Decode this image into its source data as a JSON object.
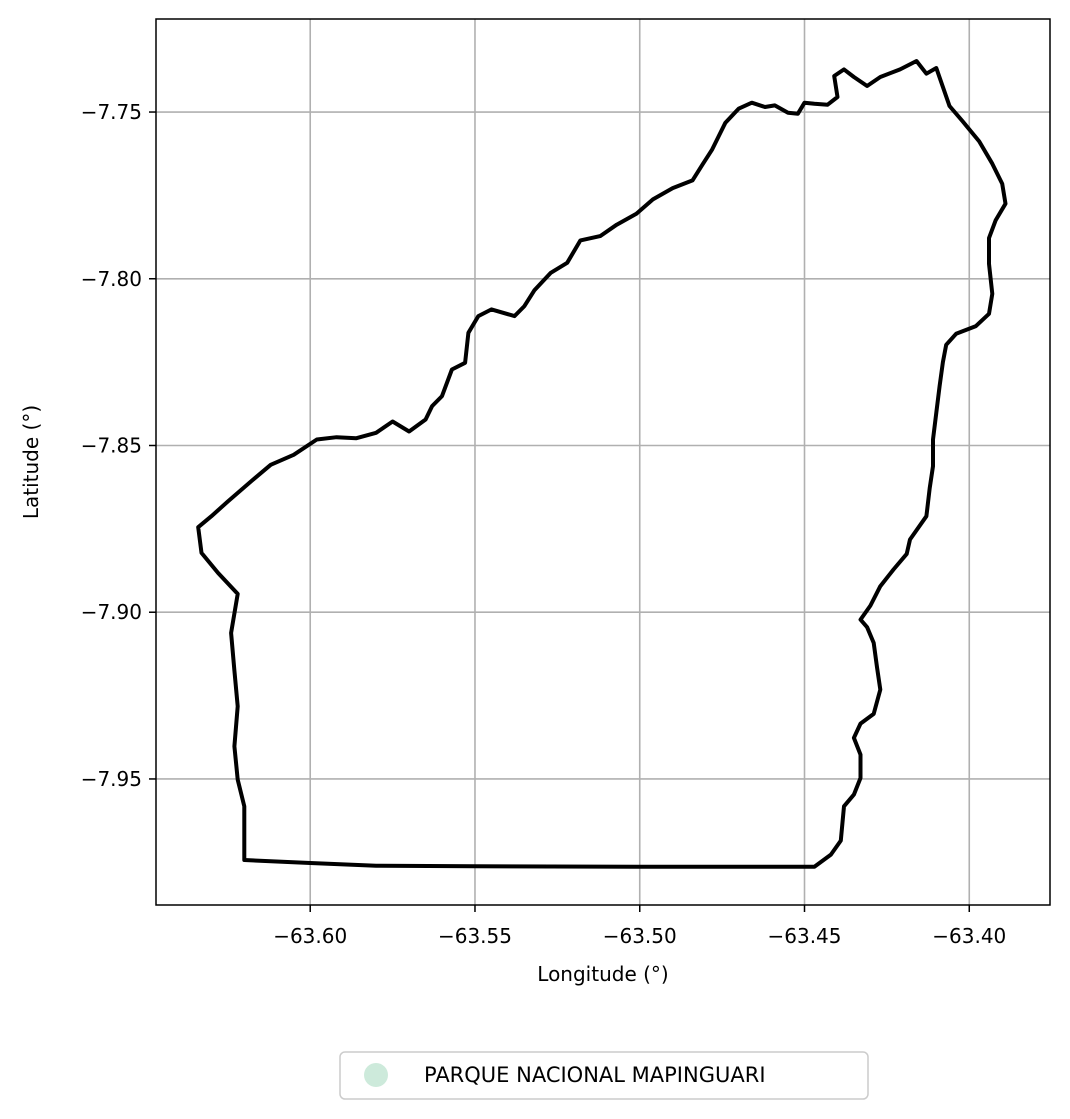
{
  "chart_data": {
    "type": "map",
    "title": "",
    "xlabel": "Longitude (°)",
    "ylabel": "Latitude (°)",
    "xlim": [
      -63.6468,
      -63.3755
    ],
    "ylim": [
      -7.9878,
      -7.7221
    ],
    "x_ticks": [
      -63.6,
      -63.55,
      -63.5,
      -63.45,
      -63.4
    ],
    "x_tick_labels": [
      "−63.60",
      "−63.55",
      "−63.50",
      "−63.45",
      "−63.40"
    ],
    "y_ticks": [
      -7.75,
      -7.8,
      -7.85,
      -7.9,
      -7.95
    ],
    "y_tick_labels": [
      "−7.75",
      "−7.80",
      "−7.85",
      "−7.90",
      "−7.95"
    ],
    "grid": true,
    "legend_position": "bottom-center",
    "legend": [
      {
        "label": "PARQUE NACIONAL MAPINGUARI",
        "color": "#cdeadb"
      }
    ],
    "outline_color": "#000000",
    "boundary": [
      [
        -63.62,
        -7.9743
      ],
      [
        -63.6,
        -7.9752
      ],
      [
        -63.58,
        -7.976
      ],
      [
        -63.55,
        -7.9762
      ],
      [
        -63.5,
        -7.9763
      ],
      [
        -63.447,
        -7.9763
      ],
      [
        -63.442,
        -7.9727
      ],
      [
        -63.439,
        -7.9685
      ],
      [
        -63.438,
        -7.9582
      ],
      [
        -63.435,
        -7.9547
      ],
      [
        -63.433,
        -7.9497
      ],
      [
        -63.433,
        -7.9427
      ],
      [
        -63.435,
        -7.9377
      ],
      [
        -63.433,
        -7.9334
      ],
      [
        -63.429,
        -7.9305
      ],
      [
        -63.427,
        -7.9232
      ],
      [
        -63.428,
        -7.9165
      ],
      [
        -63.429,
        -7.9092
      ],
      [
        -63.431,
        -7.9045
      ],
      [
        -63.433,
        -7.9022
      ],
      [
        -63.43,
        -7.898
      ],
      [
        -63.427,
        -7.8922
      ],
      [
        -63.423,
        -7.8872
      ],
      [
        -63.419,
        -7.8825
      ],
      [
        -63.418,
        -7.8782
      ],
      [
        -63.413,
        -7.8712
      ],
      [
        -63.412,
        -7.8628
      ],
      [
        -63.411,
        -7.8562
      ],
      [
        -63.411,
        -7.8482
      ],
      [
        -63.41,
        -7.8402
      ],
      [
        -63.409,
        -7.8322
      ],
      [
        -63.408,
        -7.825
      ],
      [
        -63.407,
        -7.8198
      ],
      [
        -63.404,
        -7.8165
      ],
      [
        -63.398,
        -7.8142
      ],
      [
        -63.394,
        -7.8105
      ],
      [
        -63.393,
        -7.8045
      ],
      [
        -63.394,
        -7.7955
      ],
      [
        -63.394,
        -7.7878
      ],
      [
        -63.392,
        -7.7825
      ],
      [
        -63.389,
        -7.7775
      ],
      [
        -63.39,
        -7.7715
      ],
      [
        -63.393,
        -7.7655
      ],
      [
        -63.397,
        -7.7588
      ],
      [
        -63.402,
        -7.7528
      ],
      [
        -63.406,
        -7.7482
      ],
      [
        -63.408,
        -7.7425
      ],
      [
        -63.41,
        -7.7368
      ],
      [
        -63.413,
        -7.7385
      ],
      [
        -63.416,
        -7.7347
      ],
      [
        -63.421,
        -7.7372
      ],
      [
        -63.427,
        -7.7395
      ],
      [
        -63.431,
        -7.7422
      ],
      [
        -63.435,
        -7.7395
      ],
      [
        -63.438,
        -7.7372
      ],
      [
        -63.441,
        -7.7392
      ],
      [
        -63.44,
        -7.7455
      ],
      [
        -63.443,
        -7.7478
      ],
      [
        -63.447,
        -7.7475
      ],
      [
        -63.45,
        -7.7472
      ],
      [
        -63.452,
        -7.7505
      ],
      [
        -63.455,
        -7.7502
      ],
      [
        -63.459,
        -7.748
      ],
      [
        -63.462,
        -7.7485
      ],
      [
        -63.466,
        -7.7472
      ],
      [
        -63.47,
        -7.749
      ],
      [
        -63.474,
        -7.7532
      ],
      [
        -63.476,
        -7.7572
      ],
      [
        -63.478,
        -7.7612
      ],
      [
        -63.481,
        -7.7658
      ],
      [
        -63.484,
        -7.7705
      ],
      [
        -63.49,
        -7.7728
      ],
      [
        -63.496,
        -7.7762
      ],
      [
        -63.501,
        -7.7805
      ],
      [
        -63.507,
        -7.7838
      ],
      [
        -63.512,
        -7.7872
      ],
      [
        -63.518,
        -7.7885
      ],
      [
        -63.522,
        -7.7952
      ],
      [
        -63.527,
        -7.7982
      ],
      [
        -63.532,
        -7.8035
      ],
      [
        -63.535,
        -7.8082
      ],
      [
        -63.538,
        -7.8112
      ],
      [
        -63.545,
        -7.8092
      ],
      [
        -63.549,
        -7.8112
      ],
      [
        -63.552,
        -7.8162
      ],
      [
        -63.553,
        -7.8252
      ],
      [
        -63.557,
        -7.8272
      ],
      [
        -63.56,
        -7.8352
      ],
      [
        -63.563,
        -7.8382
      ],
      [
        -63.565,
        -7.8422
      ],
      [
        -63.57,
        -7.8458
      ],
      [
        -63.575,
        -7.8428
      ],
      [
        -63.58,
        -7.8462
      ],
      [
        -63.586,
        -7.8478
      ],
      [
        -63.592,
        -7.8475
      ],
      [
        -63.598,
        -7.8482
      ],
      [
        -63.605,
        -7.8528
      ],
      [
        -63.612,
        -7.8558
      ],
      [
        -63.618,
        -7.8608
      ],
      [
        -63.625,
        -7.8668
      ],
      [
        -63.63,
        -7.8712
      ],
      [
        -63.634,
        -7.8745
      ],
      [
        -63.633,
        -7.8822
      ],
      [
        -63.628,
        -7.8882
      ],
      [
        -63.622,
        -7.8945
      ],
      [
        -63.624,
        -7.9062
      ],
      [
        -63.623,
        -7.9175
      ],
      [
        -63.622,
        -7.9282
      ],
      [
        -63.623,
        -7.9402
      ],
      [
        -63.622,
        -7.9502
      ],
      [
        -63.62,
        -7.9582
      ],
      [
        -63.62,
        -7.9743
      ]
    ]
  }
}
